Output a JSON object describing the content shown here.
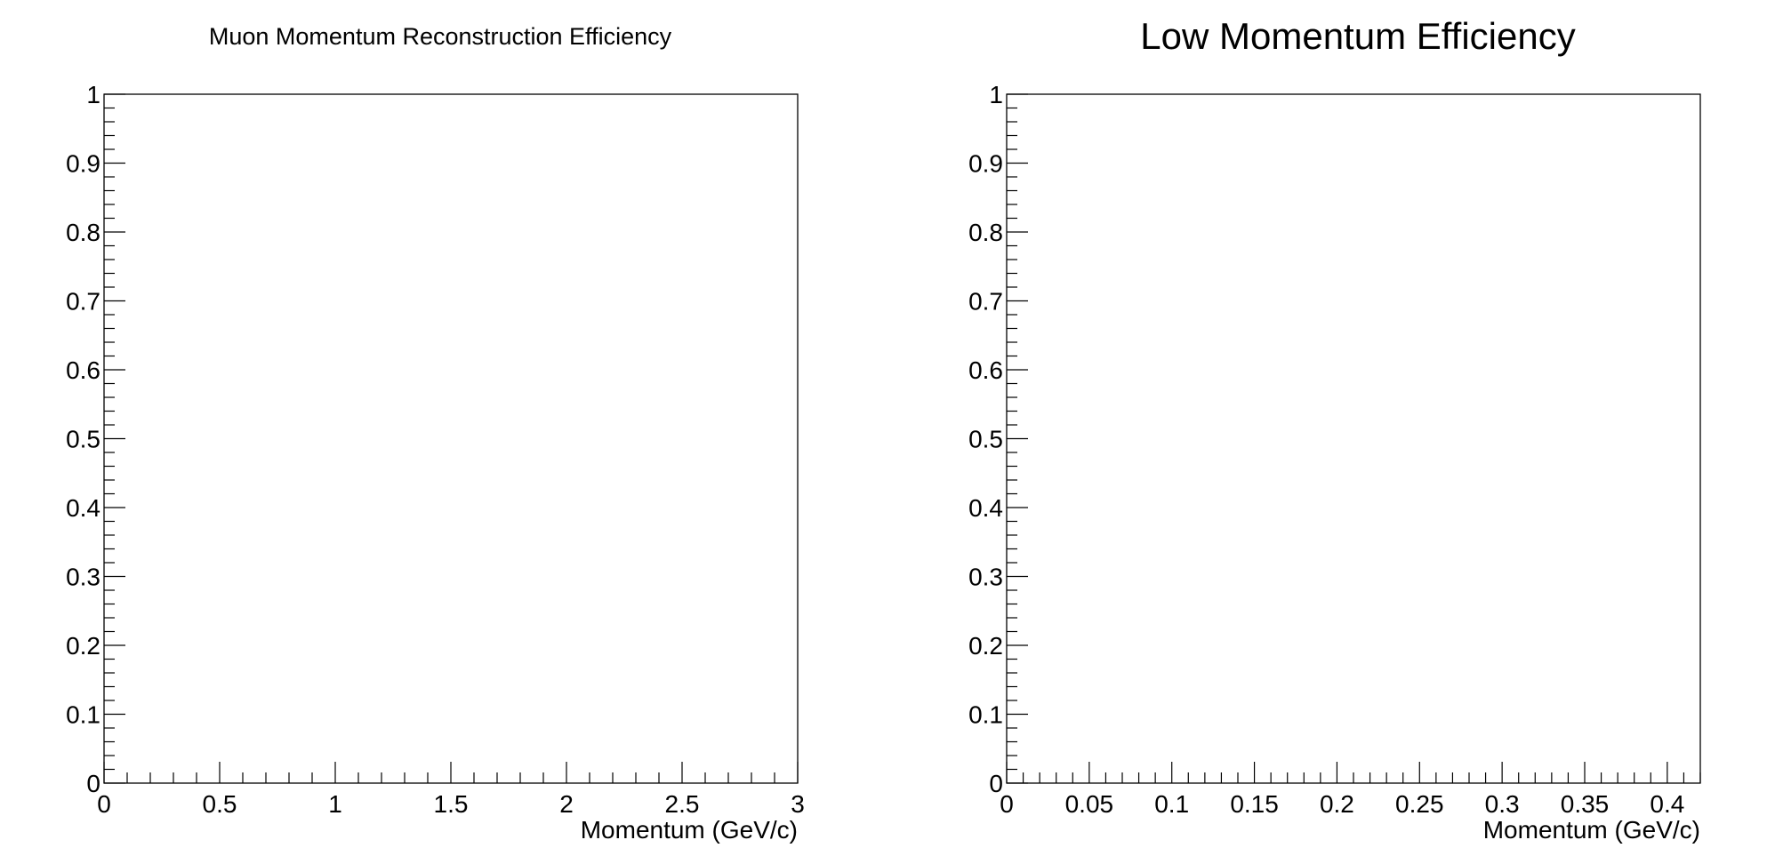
{
  "chart_data": [
    {
      "type": "line",
      "title": "Muon Momentum Reconstruction Efficiency",
      "xlabel": "Momentum (GeV/c)",
      "ylabel": "",
      "xlim": [
        0,
        3
      ],
      "ylim": [
        0,
        1
      ],
      "x_major_ticks": [
        0,
        0.5,
        1,
        1.5,
        2,
        2.5,
        3
      ],
      "x_tick_labels": [
        "0",
        "0.5",
        "1",
        "1.5",
        "2",
        "2.5",
        "3"
      ],
      "y_major_ticks": [
        0,
        0.1,
        0.2,
        0.3,
        0.4,
        0.5,
        0.6,
        0.7,
        0.8,
        0.9,
        1
      ],
      "y_tick_labels": [
        "0",
        "0.1",
        "0.2",
        "0.3",
        "0.4",
        "0.5",
        "0.6",
        "0.7",
        "0.8",
        "0.9",
        "1"
      ],
      "grid": false,
      "series": []
    },
    {
      "type": "line",
      "title": "Low Momentum Efficiency",
      "xlabel": "Momentum (GeV/c)",
      "ylabel": "",
      "xlim": [
        0,
        0.42
      ],
      "ylim": [
        0,
        1
      ],
      "x_major_ticks": [
        0,
        0.05,
        0.1,
        0.15,
        0.2,
        0.25,
        0.3,
        0.35,
        0.4
      ],
      "x_tick_labels": [
        "0",
        "0.05",
        "0.1",
        "0.15",
        "0.2",
        "0.25",
        "0.3",
        "0.35",
        "0.4"
      ],
      "y_major_ticks": [
        0,
        0.1,
        0.2,
        0.3,
        0.4,
        0.5,
        0.6,
        0.7,
        0.8,
        0.9,
        1
      ],
      "y_tick_labels": [
        "0",
        "0.1",
        "0.2",
        "0.3",
        "0.4",
        "0.5",
        "0.6",
        "0.7",
        "0.8",
        "0.9",
        "1"
      ],
      "grid": false,
      "series": []
    }
  ]
}
